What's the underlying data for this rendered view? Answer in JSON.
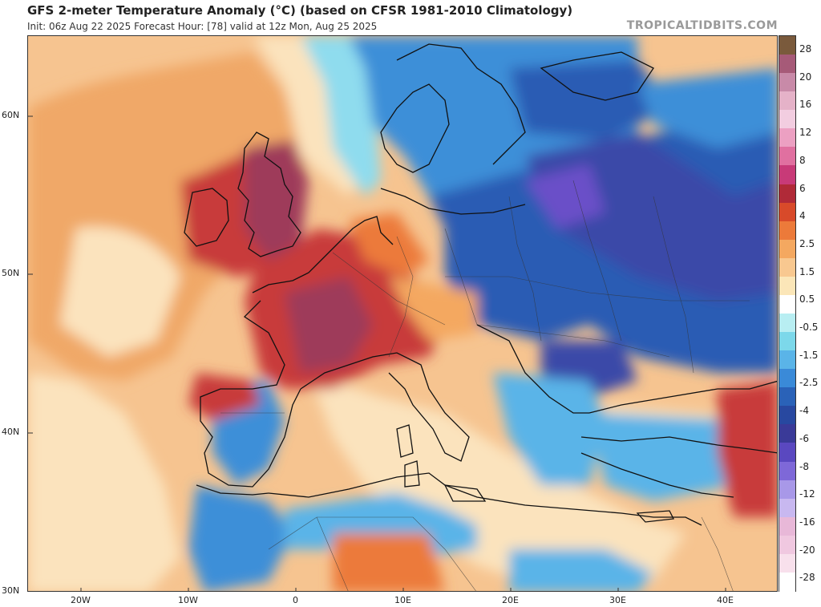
{
  "header": {
    "title": "GFS 2-meter Temperature Anomaly (°C) (based on CFSR 1981-2010 Climatology)",
    "subtitle": "Init: 06z Aug 22 2025   Forecast Hour: [78]   valid at 12z Mon, Aug 25 2025",
    "brand": "TROPICALTIDBITS.COM"
  },
  "axes": {
    "lat_labels": [
      "60N",
      "50N",
      "40N",
      "30N"
    ],
    "lon_labels": [
      "20W",
      "10W",
      "0",
      "10E",
      "20E",
      "30E",
      "40E"
    ]
  },
  "colorbar": {
    "labels": [
      "28",
      "20",
      "16",
      "12",
      "8",
      "6",
      "4",
      "2.5",
      "1.5",
      "0.5",
      "-0.5",
      "-1.5",
      "-2.5",
      "-4",
      "-6",
      "-8",
      "-12",
      "-16",
      "-20",
      "-28"
    ],
    "colors": [
      "#7a5a3c",
      "#a65a78",
      "#c88aa8",
      "#e5b2c8",
      "#f2cde0",
      "#eca0c2",
      "#e070a0",
      "#c83a78",
      "#b02a38",
      "#d84a2a",
      "#ec7a3a",
      "#f4a860",
      "#f8c890",
      "#fbe6b8",
      "#ffffff",
      "#b8eef2",
      "#7cd8ea",
      "#5ab4e8",
      "#3a8ad8",
      "#2a62b8",
      "#2848a0",
      "#3a3a98",
      "#5a48c0",
      "#7e68d8",
      "#a898e8",
      "#c8b8f0",
      "#e8b8d8",
      "#f0c8e0",
      "#f8e0ec",
      "#ffffff"
    ]
  },
  "map": {
    "name": "temperature-anomaly-europe",
    "colors": {
      "ocean_neutral": "#f6c490",
      "atlantic_warm": "#f0a868",
      "ocean_pale": "#fbe3bd",
      "cool_light": "#7fd0ea",
      "cool_mid": "#3e8fd8",
      "cool_deep": "#2a5cb4",
      "cold_purple": "#6a50c8",
      "warm_red": "#c83a3a",
      "warm_deep": "#9e3a5a",
      "coast_line": "#111111"
    }
  }
}
